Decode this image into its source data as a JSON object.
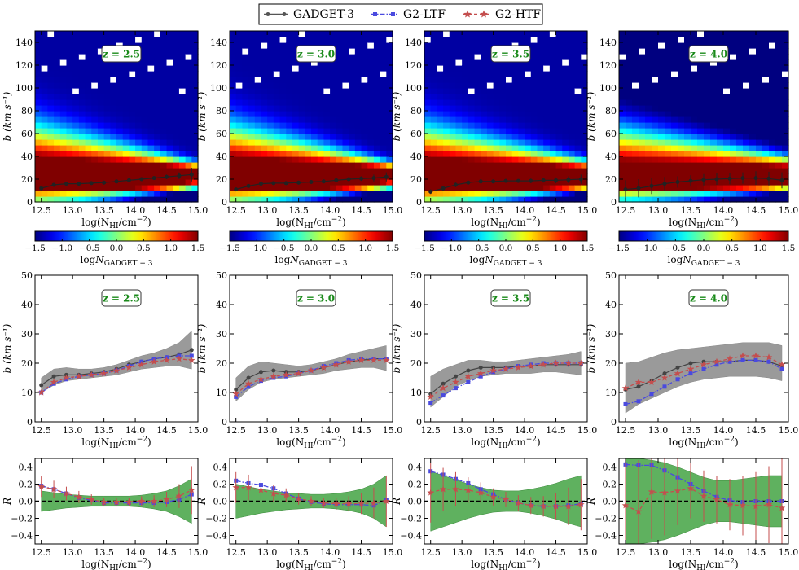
{
  "legend": {
    "entries": [
      {
        "label": "GADGET-3",
        "color": "#555555",
        "marker": "circle",
        "dash": "solid"
      },
      {
        "label": "G2-LTF",
        "color": "#4a4adf",
        "marker": "square",
        "dash": "dashdot"
      },
      {
        "label": "G2-HTF",
        "color": "#c44e4e",
        "marker": "star",
        "dash": "dashed"
      }
    ]
  },
  "colors": {
    "gadget": "#444444",
    "ltf": "#4a4adf",
    "htf": "#c44e4e",
    "band_gray": "#9a9a9a",
    "band_green": "#5fb15f",
    "redshift_text": "#1a8a1a"
  },
  "chart_data": {
    "type": "multi-panel line",
    "panels": [
      {
        "label": "z = 2.5",
        "redshift": 2.5
      },
      {
        "label": "z = 3.0",
        "redshift": 3.0
      },
      {
        "label": "z = 3.5",
        "redshift": 3.5
      },
      {
        "label": "z = 4.0",
        "redshift": 4.0
      }
    ],
    "x": [
      12.5,
      12.7,
      12.9,
      13.1,
      13.3,
      13.5,
      13.7,
      13.9,
      14.1,
      14.3,
      14.5,
      14.7,
      14.9
    ],
    "xlabel_main": "log(N",
    "xlabel_sub": "HI",
    "xlabel_tail": "/cm",
    "xlabel_exp": "−2",
    "xlabel_close": ")",
    "xlim": [
      12.4,
      15.0
    ],
    "xticks": [
      "12.5",
      "13.0",
      "13.5",
      "14.0",
      "14.5",
      "15.0"
    ],
    "xtick_values": [
      12.5,
      13.0,
      13.5,
      14.0,
      14.5,
      15.0
    ],
    "heatmap_row": {
      "ylabel": "b (km s⁻¹)",
      "ylim": [
        0,
        150
      ],
      "yticks": [
        "0",
        "20",
        "40",
        "60",
        "80",
        "100",
        "120",
        "140"
      ],
      "ytick_values": [
        0,
        20,
        40,
        60,
        80,
        100,
        120,
        140
      ],
      "colorbar": {
        "range": [
          -1.5,
          1.5
        ],
        "ticks": [
          "−1.5",
          "−1.0",
          "−0.5",
          "0.0",
          "0.5",
          "1.0",
          "1.5"
        ],
        "tick_values": [
          -1.5,
          -1.0,
          -0.5,
          0.0,
          0.5,
          1.0,
          1.5
        ],
        "label_main": "log",
        "label_italic": "N",
        "label_sub": "GADGET − 3"
      },
      "median_b": [
        [
          12,
          15,
          16,
          16,
          16.5,
          17,
          18,
          19,
          20,
          21,
          22,
          23,
          24
        ],
        [
          11,
          14,
          16,
          16.5,
          16.5,
          17,
          17.5,
          18,
          19,
          20,
          20.5,
          21,
          22
        ],
        [
          9,
          12,
          15,
          17,
          18,
          18,
          18.5,
          18.5,
          18.5,
          19,
          19,
          19.5,
          20
        ],
        [
          11,
          12,
          14,
          16,
          17.5,
          18.5,
          19.5,
          20,
          20.5,
          21,
          21,
          20.5,
          19
        ]
      ],
      "median_err": [
        [
          1,
          1,
          1,
          1,
          1,
          1,
          1,
          1,
          1.5,
          1.5,
          2,
          3,
          6
        ],
        [
          1.5,
          1.5,
          1,
          1,
          1,
          1,
          1,
          1,
          1.5,
          1.5,
          2,
          3,
          4
        ],
        [
          2,
          2,
          2,
          1.5,
          1.5,
          1.5,
          1.5,
          1.5,
          2,
          2,
          2.5,
          3,
          4
        ],
        [
          8,
          8,
          7,
          6,
          5,
          5,
          5,
          5,
          5,
          5,
          6,
          6,
          7
        ]
      ]
    },
    "b_row": {
      "ylabel": "b (km s⁻¹)",
      "ylim": [
        0,
        50
      ],
      "yticks": [
        "0",
        "10",
        "20",
        "30",
        "40",
        "50"
      ],
      "ytick_values": [
        0,
        10,
        20,
        30,
        40,
        50
      ],
      "series": [
        {
          "name": "GADGET-3",
          "values": [
            [
              12.5,
              15.5,
              16,
              16,
              16.5,
              17,
              18,
              19.5,
              20.5,
              21.5,
              22,
              23,
              24.5
            ],
            [
              11,
              15,
              17,
              17.5,
              17,
              17,
              17.5,
              18.5,
              19.5,
              20.5,
              21,
              21.5,
              21.5
            ],
            [
              9.5,
              13,
              15.5,
              17.5,
              18.5,
              18.5,
              18.5,
              19,
              19,
              19.5,
              19.5,
              19.5,
              19.5
            ],
            [
              11,
              12,
              14,
              16.5,
              18.5,
              20,
              20.5,
              20.5,
              20.5,
              21,
              21,
              20.5,
              19
            ]
          ]
        },
        {
          "name": "G2-LTF",
          "values": [
            [
              10,
              13,
              14.5,
              15.5,
              16,
              16.5,
              17.5,
              19,
              20.5,
              21.5,
              22,
              22.5,
              22.5
            ],
            [
              8.5,
              12,
              14,
              15,
              15.5,
              16.5,
              17.5,
              19,
              20,
              21,
              21.5,
              21.5,
              21.5
            ],
            [
              6.5,
              9,
              11.5,
              13.5,
              15.5,
              17,
              18,
              19,
              19.5,
              20,
              20,
              20,
              20
            ],
            [
              6,
              7,
              9.5,
              12,
              14.5,
              16.5,
              18,
              19.5,
              20.5,
              21,
              21,
              20.5,
              18
            ]
          ]
        },
        {
          "name": "G2-HTF",
          "values": [
            [
              10,
              13.5,
              15,
              15.5,
              16,
              16.5,
              17.5,
              18.5,
              19.5,
              20.5,
              21,
              21.5,
              21
            ],
            [
              9.5,
              13,
              14.5,
              15.5,
              16,
              16.5,
              17.5,
              18.5,
              19.5,
              20.5,
              21,
              21,
              21
            ],
            [
              8.5,
              11.5,
              13.5,
              15.5,
              16.5,
              17.5,
              18,
              18.5,
              19,
              19.5,
              20,
              20,
              20
            ],
            [
              11.5,
              13.5,
              13.5,
              15,
              16.5,
              18,
              19.5,
              20.5,
              21.5,
              22.5,
              22.5,
              22,
              19.5
            ]
          ]
        }
      ],
      "band_lo": [
        [
          10,
          12.5,
          14,
          14.5,
          15,
          15.5,
          16,
          17,
          18,
          18.5,
          19,
          19,
          18
        ],
        [
          7,
          11,
          13.5,
          14.5,
          15,
          15.5,
          16,
          16.5,
          17.5,
          18,
          18.5,
          18.5,
          17.5
        ],
        [
          5,
          8.5,
          12,
          14,
          15.5,
          16,
          16.5,
          16.5,
          16.5,
          17,
          17,
          16.5,
          16
        ],
        [
          3,
          6,
          8,
          10,
          12,
          13.5,
          14.5,
          15,
          15.5,
          15.5,
          15.5,
          15,
          14
        ]
      ],
      "band_hi": [
        [
          15,
          18,
          18.5,
          18,
          18,
          18.5,
          19.5,
          21,
          22.5,
          23.5,
          25,
          27,
          31
        ],
        [
          15,
          19,
          20.5,
          20,
          19.5,
          19,
          19.5,
          20.5,
          21.5,
          23,
          24,
          25,
          26
        ],
        [
          15.5,
          18,
          19.5,
          21,
          21,
          20.5,
          20.5,
          21,
          21.5,
          22,
          22.5,
          23,
          24
        ],
        [
          20,
          20.5,
          22,
          23.5,
          24.5,
          25,
          25.5,
          26,
          26.5,
          27,
          27,
          27,
          26
        ]
      ]
    },
    "ratio_row": {
      "ylabel": "R",
      "ylim": [
        -0.5,
        0.5
      ],
      "yticks": [
        "−0.4",
        "−0.2",
        "0.0",
        "0.2",
        "0.4"
      ],
      "ytick_values": [
        -0.4,
        -0.2,
        0.0,
        0.2,
        0.4
      ],
      "series": [
        {
          "name": "G2-LTF",
          "values": [
            [
              0.18,
              0.14,
              0.09,
              0.04,
              0.01,
              -0.02,
              -0.02,
              -0.02,
              -0.02,
              -0.02,
              -0.01,
              0.02,
              0.08
            ],
            [
              0.24,
              0.21,
              0.19,
              0.15,
              0.09,
              0.03,
              -0.01,
              -0.03,
              -0.04,
              -0.04,
              -0.04,
              -0.05,
              0.01
            ],
            [
              0.35,
              0.31,
              0.26,
              0.21,
              0.14,
              0.08,
              0.02,
              -0.02,
              -0.05,
              -0.06,
              -0.06,
              -0.05,
              -0.03
            ],
            [
              0.43,
              0.42,
              0.42,
              0.36,
              0.28,
              0.2,
              0.12,
              0.05,
              0.01,
              -0.01,
              0.0,
              0.0,
              0.0
            ]
          ]
        },
        {
          "name": "G2-HTF",
          "values": [
            [
              0.17,
              0.14,
              0.09,
              0.05,
              0.02,
              -0.01,
              -0.01,
              -0.01,
              0.0,
              0.0,
              0.02,
              0.06,
              0.13
            ],
            [
              0.16,
              0.16,
              0.13,
              0.09,
              0.07,
              0.03,
              0.0,
              -0.02,
              -0.03,
              -0.03,
              -0.03,
              -0.02,
              0.0
            ],
            [
              0.1,
              0.14,
              0.14,
              0.13,
              0.1,
              0.05,
              0.02,
              -0.02,
              -0.05,
              -0.06,
              -0.06,
              -0.06,
              -0.04
            ],
            [
              -0.05,
              -0.12,
              0.11,
              0.1,
              0.12,
              0.15,
              0.06,
              0.02,
              -0.04,
              -0.05,
              -0.06,
              -0.04,
              -0.08
            ]
          ]
        }
      ],
      "err": [
        [
          0.12,
          0.1,
          0.08,
          0.07,
          0.06,
          0.05,
          0.05,
          0.05,
          0.06,
          0.07,
          0.09,
          0.14,
          0.28
        ],
        [
          0.18,
          0.15,
          0.12,
          0.1,
          0.08,
          0.07,
          0.06,
          0.06,
          0.07,
          0.09,
          0.12,
          0.18,
          0.3
        ],
        [
          0.35,
          0.25,
          0.2,
          0.15,
          0.12,
          0.1,
          0.09,
          0.09,
          0.1,
          0.12,
          0.15,
          0.22,
          0.3
        ],
        [
          0.6,
          0.6,
          0.55,
          0.5,
          0.4,
          0.35,
          0.3,
          0.28,
          0.3,
          0.35,
          0.4,
          0.45,
          0.6
        ]
      ],
      "band_half": [
        [
          0.12,
          0.1,
          0.08,
          0.07,
          0.06,
          0.06,
          0.06,
          0.06,
          0.07,
          0.09,
          0.12,
          0.18,
          0.26
        ],
        [
          0.2,
          0.17,
          0.14,
          0.12,
          0.1,
          0.09,
          0.08,
          0.08,
          0.09,
          0.11,
          0.14,
          0.2,
          0.3
        ],
        [
          0.35,
          0.3,
          0.25,
          0.2,
          0.16,
          0.13,
          0.12,
          0.12,
          0.14,
          0.17,
          0.21,
          0.26,
          0.3
        ],
        [
          0.5,
          0.5,
          0.48,
          0.45,
          0.4,
          0.34,
          0.28,
          0.24,
          0.24,
          0.26,
          0.28,
          0.3,
          0.3
        ]
      ]
    }
  }
}
